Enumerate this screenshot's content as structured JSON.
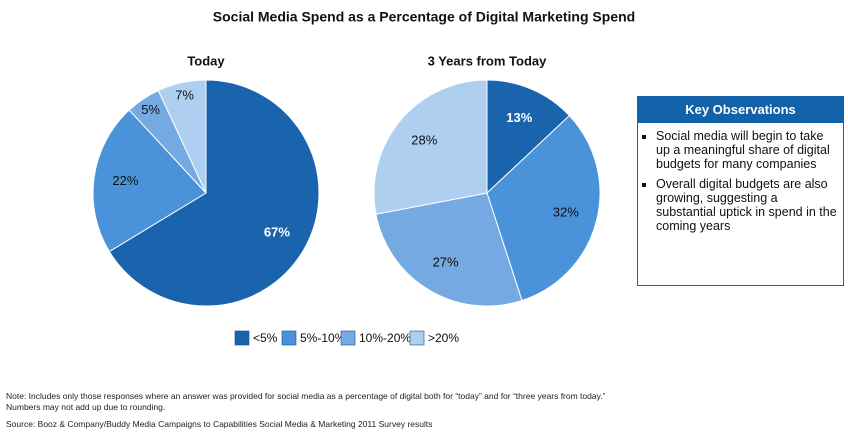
{
  "title": "Social Media Spend as a Percentage of Digital Marketing Spend",
  "chart_data": [
    {
      "type": "pie",
      "title": "Today",
      "categories": [
        "<5%",
        "5%-10%",
        "10%-20%",
        ">20%"
      ],
      "values": [
        67,
        22,
        5,
        7
      ],
      "value_labels": [
        "67%",
        "22%",
        "5%",
        "7%"
      ],
      "colors": [
        "#1a63ad",
        "#4a93da",
        "#74a9e2",
        "#aecff0"
      ]
    },
    {
      "type": "pie",
      "title": "3 Years from Today",
      "categories": [
        "<5%",
        "5%-10%",
        "10%-20%",
        ">20%"
      ],
      "values": [
        13,
        32,
        27,
        28
      ],
      "value_labels": [
        "13%",
        "32%",
        "27%",
        "28%"
      ],
      "colors": [
        "#1a63ad",
        "#4a93da",
        "#74a9e2",
        "#aecff0"
      ]
    }
  ],
  "key_observations": {
    "title": "Key Observations",
    "items": [
      "Social media will begin to take up a meaningful share of digital budgets for many companies",
      "Overall digital budgets are also growing, suggesting a substantial uptick in spend in the coming years"
    ]
  },
  "notes": [
    "Note: Includes only those responses where an answer was provided for social media as a percentage of digital both for “today” and for “three years from today.”",
    "Numbers may not add up due to rounding."
  ],
  "source": "Source: Booz & Company/Buddy Media Campaigns to Capabilities Social Media & Marketing 2011 Survey results"
}
